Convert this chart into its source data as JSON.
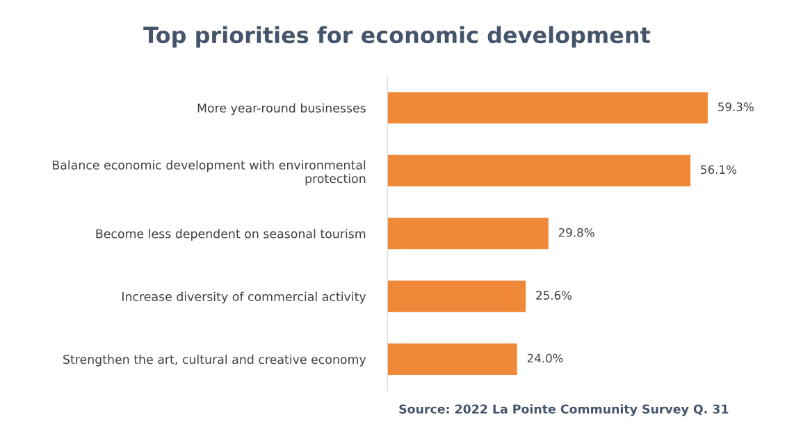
{
  "chart_data": {
    "type": "bar",
    "orientation": "horizontal",
    "title": "Top priorities for economic development",
    "categories": [
      "More year-round businesses",
      "Balance economic development with environmental\nprotection",
      "Become less dependent on seasonal tourism",
      "Increase diversity of commercial activity",
      "Strengthen the art, cultural and creative economy"
    ],
    "values": [
      59.3,
      56.1,
      29.8,
      25.6,
      24.0
    ],
    "value_labels": [
      "59.3%",
      "56.1%",
      "29.8%",
      "25.6%",
      "24.0%"
    ],
    "color": "#f0883a",
    "annotations": [
      "Source: 2022 La Pointe Community Survey Q. 31"
    ]
  }
}
